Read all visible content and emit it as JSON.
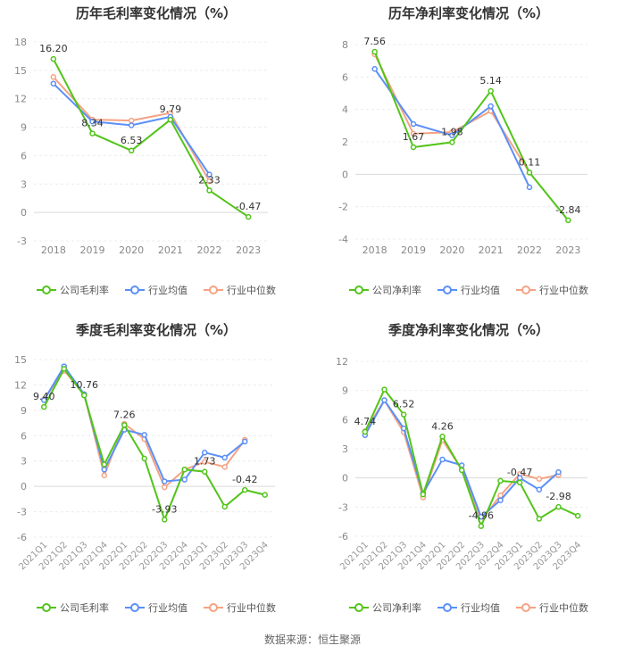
{
  "colors": {
    "company": "#52c41a",
    "avg": "#5b8ff9",
    "median": "#f4a384"
  },
  "footer": "数据来源：恒生聚源",
  "chart_data": [
    {
      "type": "line",
      "title": "历年毛利率变化情况（%）",
      "categories": [
        "2018",
        "2019",
        "2020",
        "2021",
        "2022",
        "2023"
      ],
      "yticks": [
        18,
        15,
        12,
        9,
        6,
        3,
        0,
        -3
      ],
      "ylim": [
        -3,
        18
      ],
      "series": [
        {
          "name": "公司毛利率",
          "key": "company",
          "values": [
            16.2,
            8.34,
            6.53,
            9.79,
            2.33,
            -0.47
          ]
        },
        {
          "name": "行业均值",
          "key": "avg",
          "values": [
            13.6,
            9.6,
            9.2,
            10.1,
            4.0,
            null
          ]
        },
        {
          "name": "行业中位数",
          "key": "median",
          "values": [
            14.3,
            9.8,
            9.7,
            10.5,
            3.3,
            null
          ]
        }
      ],
      "labels": [
        {
          "text": "16.20",
          "i": 0,
          "v": 16.2
        },
        {
          "text": "8.34",
          "i": 1,
          "v": 8.34
        },
        {
          "text": "6.53",
          "i": 2,
          "v": 6.53
        },
        {
          "text": "9.79",
          "i": 3,
          "v": 9.79
        },
        {
          "text": "2.33",
          "i": 4,
          "v": 2.33
        },
        {
          "text": "-0.47",
          "i": 5,
          "v": -0.47
        }
      ]
    },
    {
      "type": "line",
      "title": "历年净利率变化情况（%）",
      "categories": [
        "2018",
        "2019",
        "2020",
        "2021",
        "2022",
        "2023"
      ],
      "yticks": [
        8,
        6,
        4,
        2,
        0,
        -2,
        -4
      ],
      "ylim": [
        -4,
        8
      ],
      "series": [
        {
          "name": "公司净利率",
          "key": "company",
          "values": [
            7.56,
            1.67,
            1.98,
            5.14,
            0.11,
            -2.84
          ]
        },
        {
          "name": "行业均值",
          "key": "avg",
          "values": [
            6.5,
            3.1,
            2.4,
            4.2,
            -0.8,
            null
          ]
        },
        {
          "name": "行业中位数",
          "key": "median",
          "values": [
            7.4,
            2.5,
            2.6,
            3.9,
            0.1,
            null
          ]
        }
      ],
      "labels": [
        {
          "text": "7.56",
          "i": 0,
          "v": 7.56
        },
        {
          "text": "1.67",
          "i": 1,
          "v": 1.67
        },
        {
          "text": "1.98",
          "i": 2,
          "v": 1.98
        },
        {
          "text": "5.14",
          "i": 3,
          "v": 5.14
        },
        {
          "text": "0.11",
          "i": 4,
          "v": 0.11
        },
        {
          "text": "-2.84",
          "i": 5,
          "v": -2.84
        }
      ]
    },
    {
      "type": "line",
      "title": "季度毛利率变化情况（%）",
      "categories": [
        "2021Q1",
        "2021Q2",
        "2021Q3",
        "2021Q4",
        "2022Q1",
        "2022Q2",
        "2022Q3",
        "2022Q4",
        "2023Q1",
        "2023Q2",
        "2023Q3",
        "2023Q4"
      ],
      "yticks": [
        15,
        12,
        9,
        6,
        3,
        0,
        -3,
        -6
      ],
      "ylim": [
        -6,
        15
      ],
      "series": [
        {
          "name": "公司毛利率",
          "key": "company",
          "values": [
            9.4,
            13.9,
            10.76,
            2.6,
            7.26,
            3.3,
            -3.93,
            2.0,
            1.73,
            -2.4,
            -0.42,
            -1.0
          ]
        },
        {
          "name": "行业均值",
          "key": "avg",
          "values": [
            10.2,
            14.2,
            10.9,
            2.0,
            6.7,
            6.1,
            0.6,
            0.8,
            4.0,
            3.4,
            5.3,
            null
          ]
        },
        {
          "name": "行业中位数",
          "key": "median",
          "values": [
            10.3,
            13.7,
            10.9,
            1.3,
            7.4,
            5.6,
            -0.1,
            2.0,
            2.9,
            2.3,
            5.5,
            null
          ]
        }
      ],
      "labels": [
        {
          "text": "9.40",
          "i": 0,
          "v": 9.4
        },
        {
          "text": "10.76",
          "i": 2,
          "v": 10.76
        },
        {
          "text": "7.26",
          "i": 4,
          "v": 7.26
        },
        {
          "text": "-3.93",
          "i": 6,
          "v": -3.93
        },
        {
          "text": "1.73",
          "i": 8,
          "v": 1.73
        },
        {
          "text": "-0.42",
          "i": 10,
          "v": -0.42
        }
      ]
    },
    {
      "type": "line",
      "title": "季度净利率变化情况（%）",
      "categories": [
        "2021Q1",
        "2021Q2",
        "2021Q3",
        "2021Q4",
        "2022Q1",
        "2022Q2",
        "2022Q3",
        "2022Q4",
        "2023Q1",
        "2023Q2",
        "2023Q3",
        "2023Q4"
      ],
      "yticks": [
        12,
        9,
        6,
        3,
        0,
        -3,
        -6
      ],
      "ylim": [
        -6,
        12
      ],
      "series": [
        {
          "name": "公司净利率",
          "key": "company",
          "values": [
            4.74,
            9.1,
            6.52,
            -1.7,
            4.26,
            0.8,
            -4.96,
            -0.3,
            -0.47,
            -4.2,
            -2.98,
            -3.9
          ]
        },
        {
          "name": "行业均值",
          "key": "avg",
          "values": [
            4.4,
            8.0,
            5.1,
            -1.6,
            1.9,
            1.3,
            -4.0,
            -2.3,
            0.0,
            -1.2,
            0.6,
            null
          ]
        },
        {
          "name": "行业中位数",
          "key": "median",
          "values": [
            4.8,
            8.0,
            4.7,
            -2.0,
            3.9,
            0.9,
            -4.4,
            -1.8,
            0.4,
            -0.1,
            0.3,
            null
          ]
        }
      ],
      "labels": [
        {
          "text": "4.74",
          "i": 0,
          "v": 4.74
        },
        {
          "text": "6.52",
          "i": 2,
          "v": 6.52
        },
        {
          "text": "4.26",
          "i": 4,
          "v": 4.26
        },
        {
          "text": "-4.96",
          "i": 6,
          "v": -4.96
        },
        {
          "text": "-0.47",
          "i": 8,
          "v": -0.47
        },
        {
          "text": "-2.98",
          "i": 10,
          "v": -2.98
        }
      ]
    }
  ]
}
